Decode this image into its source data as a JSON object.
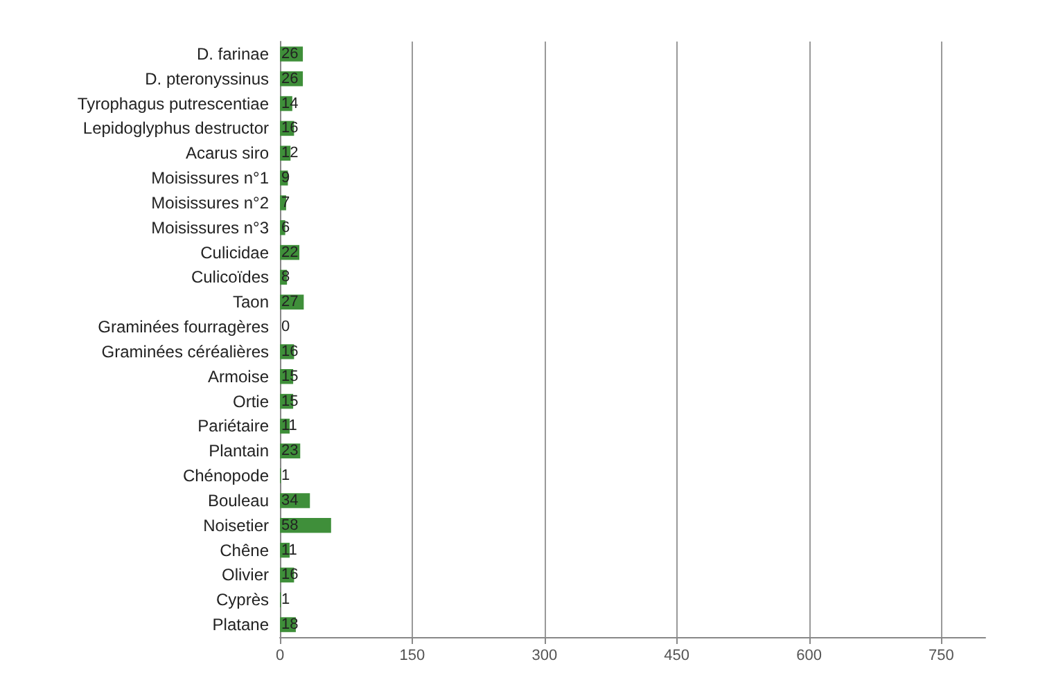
{
  "chart_data": {
    "type": "bar",
    "orientation": "horizontal",
    "categories": [
      "D. farinae",
      "D. pteronyssinus",
      "Tyrophagus putrescentiae",
      "Lepidoglyphus destructor",
      "Acarus siro",
      "Moisissures n°1",
      "Moisissures n°2",
      "Moisissures n°3",
      "Culicidae",
      "Culicoïdes",
      "Taon",
      "Graminées fourragères",
      "Graminées céréalières",
      "Armoise",
      "Ortie",
      "Pariétaire",
      "Plantain",
      "Chénopode",
      "Bouleau",
      "Noisetier",
      "Chêne",
      "Olivier",
      "Cyprès",
      "Platane"
    ],
    "values": [
      26,
      26,
      14,
      16,
      12,
      9,
      7,
      6,
      22,
      8,
      27,
      0,
      16,
      15,
      15,
      11,
      23,
      1,
      34,
      58,
      11,
      16,
      1,
      18
    ],
    "color": "#3f8f3a",
    "xlim": [
      0,
      800
    ],
    "xticks": [
      0,
      150,
      300,
      450,
      600,
      750
    ],
    "grid": "x",
    "data_labels": true
  }
}
